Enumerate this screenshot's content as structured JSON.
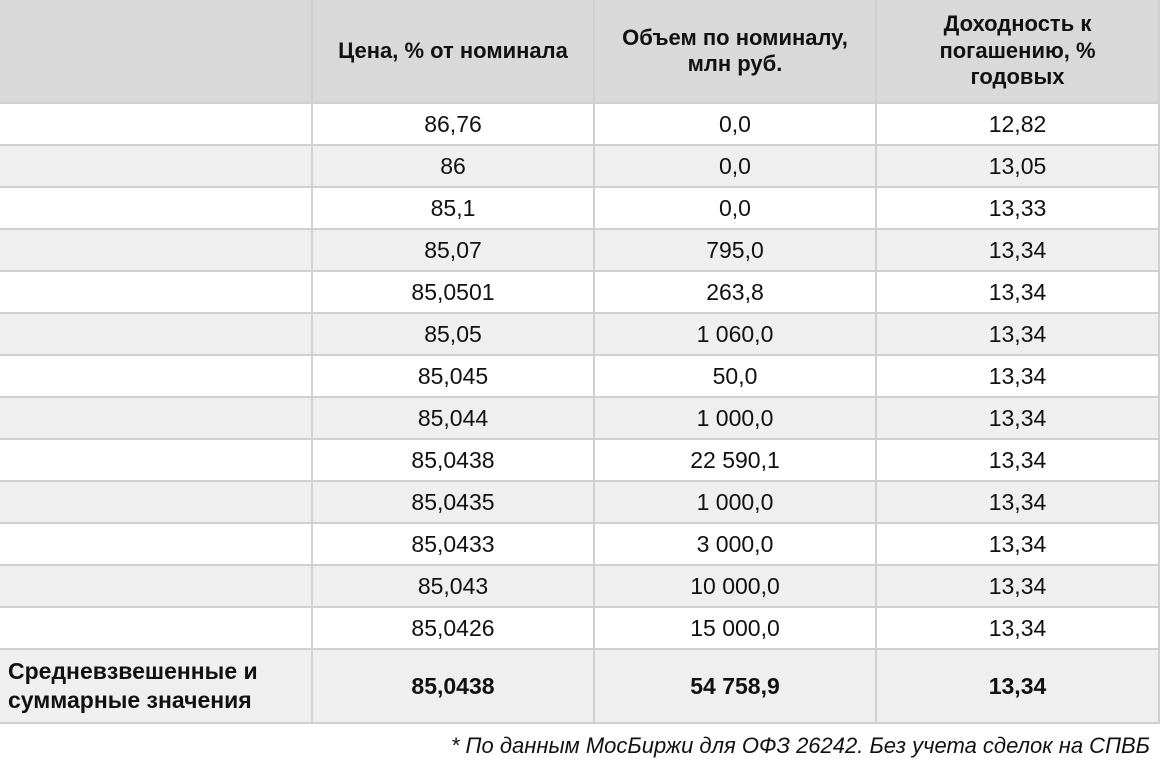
{
  "header": {
    "columns": [
      "Цена, % от номинала",
      "Объем по номиналу, млн руб.",
      "Доходность к погашению, % годовых"
    ]
  },
  "table": {
    "rows": [
      [
        "86,76",
        "0,0",
        "12,82"
      ],
      [
        "86",
        "0,0",
        "13,05"
      ],
      [
        "85,1",
        "0,0",
        "13,33"
      ],
      [
        "85,07",
        "795,0",
        "13,34"
      ],
      [
        "85,0501",
        "263,8",
        "13,34"
      ],
      [
        "85,05",
        "1 060,0",
        "13,34"
      ],
      [
        "85,045",
        "50,0",
        "13,34"
      ],
      [
        "85,044",
        "1 000,0",
        "13,34"
      ],
      [
        "85,0438",
        "22 590,1",
        "13,34"
      ],
      [
        "85,0435",
        "1 000,0",
        "13,34"
      ],
      [
        "85,0433",
        "3 000,0",
        "13,34"
      ],
      [
        "85,043",
        "10 000,0",
        "13,34"
      ],
      [
        "85,0426",
        "15 000,0",
        "13,34"
      ]
    ]
  },
  "summary": {
    "label": "Средневзвешенные и суммарные значения",
    "values": [
      "85,0438",
      "54 758,9",
      "13,34"
    ]
  },
  "footnote": "* По данным МосБиржи для ОФЗ 26242. Без учета сделок на СПВБ"
}
